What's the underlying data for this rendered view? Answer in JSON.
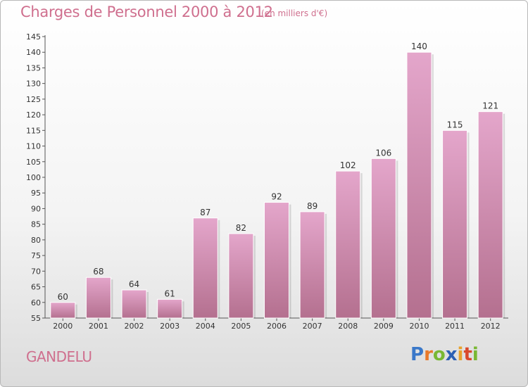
{
  "header": {
    "title": "Charges de Personnel 2000 à 2012",
    "subtitle": "(en milliers d'€)"
  },
  "footer": {
    "place": "GANDELU",
    "logo_letters": [
      {
        "ch": "P",
        "color": "#3a78c9"
      },
      {
        "ch": "r",
        "color": "#e8792b"
      },
      {
        "ch": "o",
        "color": "#79b833"
      },
      {
        "ch": "x",
        "color": "#2c5fb3"
      },
      {
        "ch": "i",
        "color": "#e8a22b"
      },
      {
        "ch": "t",
        "color": "#d9492b"
      },
      {
        "ch": "i",
        "color": "#79b833"
      }
    ]
  },
  "chart_data": {
    "type": "bar",
    "title": "Charges de Personnel 2000 à 2012",
    "subtitle": "(en milliers d'€)",
    "categories": [
      "2000",
      "2001",
      "2002",
      "2003",
      "2004",
      "2005",
      "2006",
      "2007",
      "2008",
      "2009",
      "2010",
      "2011",
      "2012"
    ],
    "values": [
      60,
      68,
      64,
      61,
      87,
      82,
      92,
      89,
      102,
      106,
      140,
      115,
      121
    ],
    "ylim": [
      55,
      145
    ],
    "yticks": [
      55,
      60,
      65,
      70,
      75,
      80,
      85,
      90,
      95,
      100,
      105,
      110,
      115,
      120,
      125,
      130,
      135,
      140,
      145
    ],
    "grid": false,
    "bar_color_top": "#e4a6cb",
    "bar_color_bottom": "#b4708f"
  }
}
